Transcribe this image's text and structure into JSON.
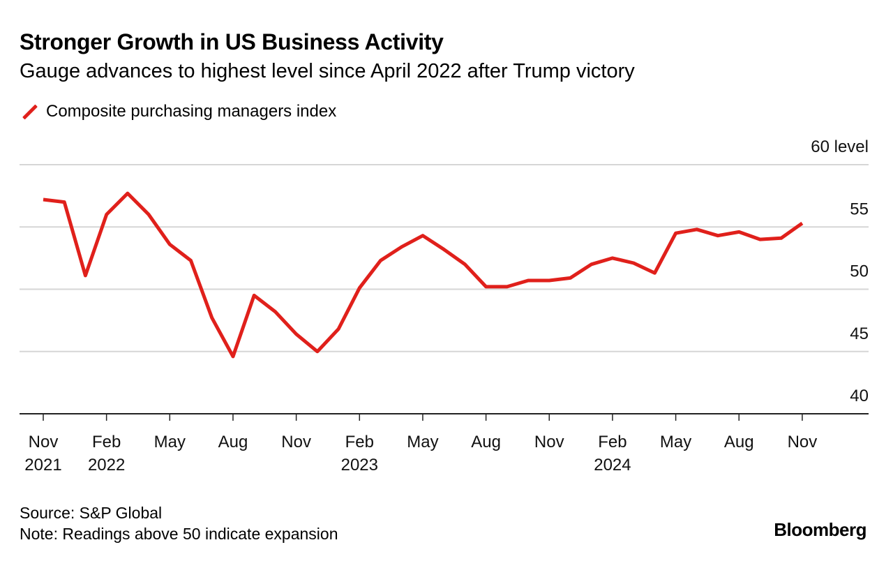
{
  "title": "Stronger Growth in US Business Activity",
  "subtitle": "Gauge advances to highest level since April 2022 after Trump victory",
  "source": "Source: S&P Global",
  "note": "Note: Readings above 50 indicate expansion",
  "brand": "Bloomberg",
  "chart_data": {
    "type": "line",
    "ylabel_unit": "level",
    "ylim": [
      40,
      60
    ],
    "yticks": [
      40,
      45,
      50,
      55,
      60
    ],
    "ytick_labels": [
      "40",
      "45",
      "50",
      "55",
      "60 level"
    ],
    "grid": true,
    "legend_position": "top-left",
    "xtick_labels": [
      {
        "month": "2021-11",
        "line1": "Nov",
        "line2": "2021"
      },
      {
        "month": "2022-02",
        "line1": "Feb",
        "line2": "2022"
      },
      {
        "month": "2022-05",
        "line1": "May",
        "line2": ""
      },
      {
        "month": "2022-08",
        "line1": "Aug",
        "line2": ""
      },
      {
        "month": "2022-11",
        "line1": "Nov",
        "line2": ""
      },
      {
        "month": "2023-02",
        "line1": "Feb",
        "line2": "2023"
      },
      {
        "month": "2023-05",
        "line1": "May",
        "line2": ""
      },
      {
        "month": "2023-08",
        "line1": "Aug",
        "line2": ""
      },
      {
        "month": "2023-11",
        "line1": "Nov",
        "line2": ""
      },
      {
        "month": "2024-02",
        "line1": "Feb",
        "line2": "2024"
      },
      {
        "month": "2024-05",
        "line1": "May",
        "line2": ""
      },
      {
        "month": "2024-08",
        "line1": "Aug",
        "line2": ""
      },
      {
        "month": "2024-11",
        "line1": "Nov",
        "line2": ""
      }
    ],
    "series": [
      {
        "name": "Composite purchasing managers index",
        "color": "#e0201b",
        "x": [
          "2021-11",
          "2021-12",
          "2022-01",
          "2022-02",
          "2022-03",
          "2022-04",
          "2022-05",
          "2022-06",
          "2022-07",
          "2022-08",
          "2022-09",
          "2022-10",
          "2022-11",
          "2022-12",
          "2023-01",
          "2023-02",
          "2023-03",
          "2023-04",
          "2023-05",
          "2023-06",
          "2023-07",
          "2023-08",
          "2023-09",
          "2023-10",
          "2023-11",
          "2023-12",
          "2024-01",
          "2024-02",
          "2024-03",
          "2024-04",
          "2024-05",
          "2024-06",
          "2024-07",
          "2024-08",
          "2024-09",
          "2024-10",
          "2024-11"
        ],
        "values": [
          57.2,
          57.0,
          51.1,
          56.0,
          57.7,
          56.0,
          53.6,
          52.3,
          47.7,
          44.6,
          49.5,
          48.2,
          46.4,
          45.0,
          46.8,
          50.1,
          52.3,
          53.4,
          54.3,
          53.2,
          52.0,
          50.2,
          50.2,
          50.7,
          50.7,
          50.9,
          52.0,
          52.5,
          52.1,
          51.3,
          54.5,
          54.8,
          54.3,
          54.6,
          54.0,
          54.1,
          55.3
        ]
      }
    ]
  }
}
